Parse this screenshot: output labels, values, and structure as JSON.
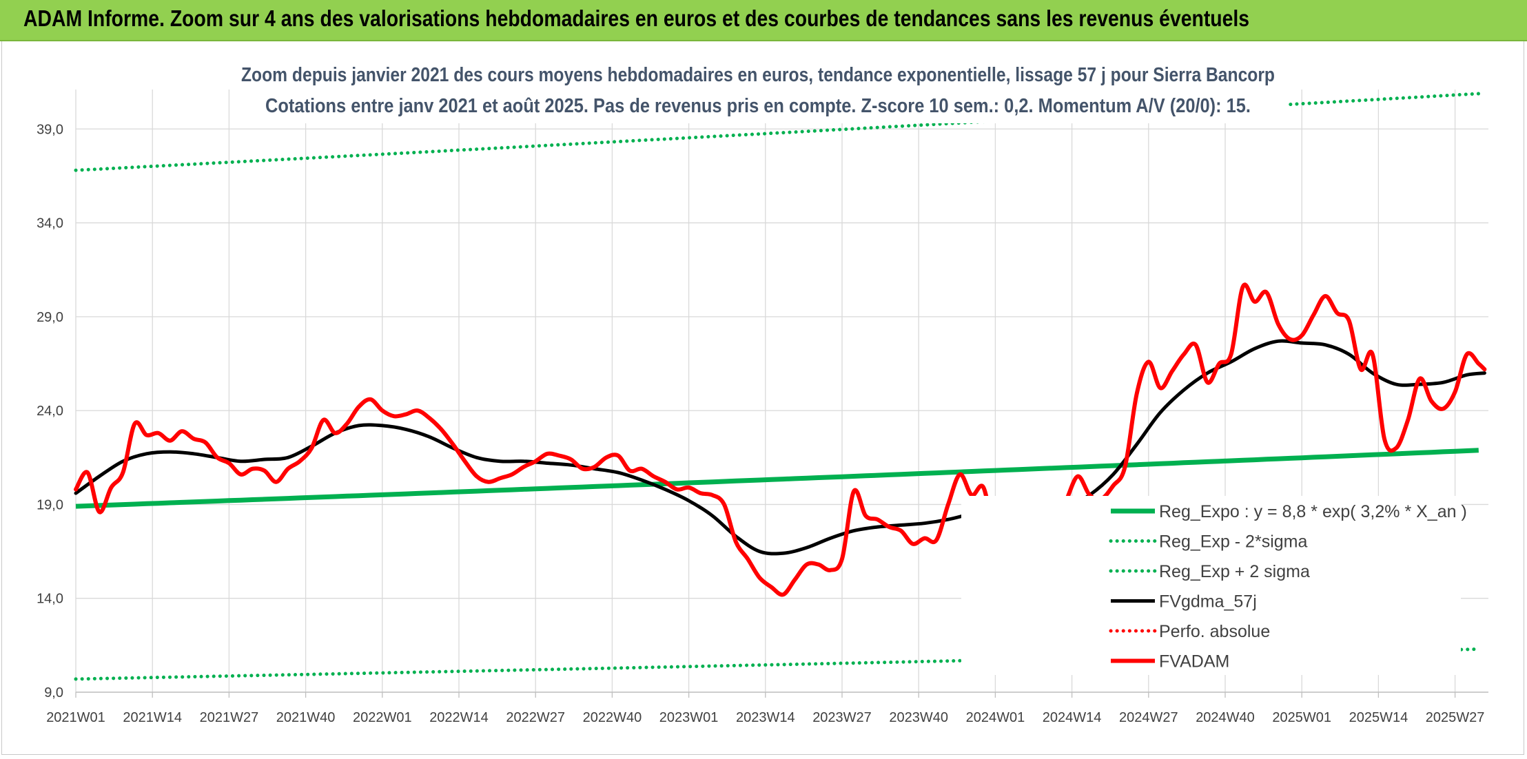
{
  "header": {
    "title": "ADAM Informe. Zoom sur 4 ans des valorisations hebdomadaires en euros et des courbes de tendances sans les revenus éventuels"
  },
  "colors": {
    "header_bg": "#92d050",
    "trend": "#00b050",
    "price": "#ff0000",
    "mavg": "#000000",
    "subtitle": "#44546a",
    "grid": "#d9d9d9"
  },
  "chart_data": {
    "type": "line",
    "title": "Zoom depuis janvier 2021 des cours moyens hebdomadaires en euros, tendance exponentielle, lissage 57 j pour Sierra Bancorp",
    "subtitle": "Cotations entre janv 2021 et août 2025. Pas de revenus pris en compte. Z-score 10 sem.: 0,2. Momentum A/V (20/0): 15.",
    "xlabel": "",
    "ylabel": "",
    "ylim": [
      9.0,
      40.0
    ],
    "yticks": [
      "9,0",
      "14,0",
      "19,0",
      "24,0",
      "29,0",
      "34,0",
      "39,0"
    ],
    "xticks": [
      "2021W01",
      "2021W14",
      "2021W27",
      "2021W40",
      "2022W01",
      "2022W14",
      "2022W27",
      "2022W40",
      "2023W01",
      "2023W14",
      "2023W27",
      "2023W40",
      "2024W01",
      "2024W14",
      "2024W27",
      "2024W40",
      "2025W01",
      "2025W14",
      "2025W27"
    ],
    "grid": true,
    "legend_position": "right",
    "series": [
      {
        "name": "Reg_Expo : y = 8,8 * exp( 3,2% *  X_an )",
        "style": "solid",
        "color": "#00b050",
        "x": [
          "2021W01",
          "2025W32"
        ],
        "y": [
          18.9,
          21.9
        ]
      },
      {
        "name": "Reg_Exp - 2*sigma",
        "style": "dotted",
        "color": "#00b050",
        "x": [
          "2021W01",
          "2025W32"
        ],
        "y": [
          9.7,
          11.3
        ]
      },
      {
        "name": "Reg_Exp + 2 sigma",
        "style": "dotted",
        "color": "#00b050",
        "x": [
          "2021W01",
          "2025W32"
        ],
        "y": [
          36.8,
          40.9
        ]
      },
      {
        "name": "FVgdma_57j",
        "style": "solid",
        "color": "#000000",
        "x": [
          "2021W01",
          "2021W05",
          "2021W09",
          "2021W13",
          "2021W17",
          "2021W21",
          "2021W25",
          "2021W29",
          "2021W33",
          "2021W37",
          "2021W41",
          "2021W45",
          "2021W49",
          "2022W01",
          "2022W05",
          "2022W09",
          "2022W13",
          "2022W17",
          "2022W21",
          "2022W25",
          "2022W29",
          "2022W33",
          "2022W37",
          "2022W41",
          "2022W45",
          "2022W49",
          "2023W01",
          "2023W05",
          "2023W09",
          "2023W13",
          "2023W17",
          "2023W21",
          "2023W25",
          "2023W29",
          "2023W33",
          "2023W37",
          "2023W41",
          "2023W45",
          "2023W49",
          "2024W01",
          "2024W05",
          "2024W09",
          "2024W13",
          "2024W17",
          "2024W21",
          "2024W25",
          "2024W29",
          "2024W33",
          "2024W37",
          "2024W41",
          "2024W45",
          "2024W49",
          "2025W01",
          "2025W05",
          "2025W09",
          "2025W13",
          "2025W17",
          "2025W21",
          "2025W25",
          "2025W29",
          "2025W32"
        ],
        "y": [
          19.6,
          20.5,
          21.3,
          21.7,
          21.8,
          21.7,
          21.5,
          21.3,
          21.4,
          21.5,
          22.1,
          22.8,
          23.2,
          23.2,
          23.0,
          22.6,
          22.0,
          21.5,
          21.3,
          21.3,
          21.2,
          21.1,
          20.9,
          20.7,
          20.3,
          19.8,
          19.2,
          18.4,
          17.3,
          16.5,
          16.4,
          16.7,
          17.2,
          17.6,
          17.8,
          17.9,
          18.0,
          18.2,
          18.5,
          18.7,
          18.6,
          18.5,
          18.8,
          19.5,
          20.6,
          22.2,
          23.9,
          25.1,
          26.0,
          26.6,
          27.3,
          27.7,
          27.6,
          27.5,
          27.0,
          26.0,
          25.4,
          25.4,
          25.5,
          25.9,
          26.0
        ]
      },
      {
        "name": "Perfo. absolue",
        "style": "dotted",
        "color": "#ff0000",
        "x": [],
        "y": []
      },
      {
        "name": "FVADAM",
        "style": "solid",
        "color": "#ff0000",
        "x": [
          "2021W01",
          "2021W03",
          "2021W05",
          "2021W07",
          "2021W09",
          "2021W11",
          "2021W13",
          "2021W15",
          "2021W17",
          "2021W19",
          "2021W21",
          "2021W23",
          "2021W25",
          "2021W27",
          "2021W29",
          "2021W31",
          "2021W33",
          "2021W35",
          "2021W37",
          "2021W39",
          "2021W41",
          "2021W43",
          "2021W45",
          "2021W47",
          "2021W49",
          "2021W51",
          "2022W01",
          "2022W03",
          "2022W05",
          "2022W07",
          "2022W09",
          "2022W11",
          "2022W13",
          "2022W15",
          "2022W17",
          "2022W19",
          "2022W21",
          "2022W23",
          "2022W25",
          "2022W27",
          "2022W29",
          "2022W31",
          "2022W33",
          "2022W35",
          "2022W37",
          "2022W39",
          "2022W41",
          "2022W43",
          "2022W45",
          "2022W47",
          "2022W49",
          "2022W51",
          "2023W01",
          "2023W03",
          "2023W05",
          "2023W07",
          "2023W09",
          "2023W11",
          "2023W13",
          "2023W15",
          "2023W17",
          "2023W19",
          "2023W21",
          "2023W23",
          "2023W25",
          "2023W27",
          "2023W29",
          "2023W31",
          "2023W33",
          "2023W35",
          "2023W37",
          "2023W39",
          "2023W41",
          "2023W43",
          "2023W45",
          "2023W47",
          "2023W49",
          "2023W51",
          "2024W01",
          "2024W03",
          "2024W05",
          "2024W07",
          "2024W09",
          "2024W11",
          "2024W13",
          "2024W15",
          "2024W17",
          "2024W19",
          "2024W21",
          "2024W23",
          "2024W25",
          "2024W27",
          "2024W29",
          "2024W31",
          "2024W33",
          "2024W35",
          "2024W37",
          "2024W39",
          "2024W41",
          "2024W43",
          "2024W45",
          "2024W47",
          "2024W49",
          "2024W51",
          "2025W01",
          "2025W03",
          "2025W05",
          "2025W07",
          "2025W09",
          "2025W11",
          "2025W13",
          "2025W15",
          "2025W17",
          "2025W19",
          "2025W21",
          "2025W23",
          "2025W25",
          "2025W27",
          "2025W29",
          "2025W31",
          "2025W32"
        ],
        "y": [
          19.8,
          20.7,
          18.6,
          19.9,
          20.7,
          23.3,
          22.7,
          22.8,
          22.4,
          22.9,
          22.5,
          22.3,
          21.5,
          21.2,
          20.6,
          20.9,
          20.8,
          20.2,
          20.9,
          21.3,
          22.0,
          23.5,
          22.8,
          23.3,
          24.2,
          24.6,
          24.0,
          23.7,
          23.8,
          24.0,
          23.6,
          23.0,
          22.2,
          21.3,
          20.5,
          20.2,
          20.4,
          20.6,
          21.0,
          21.3,
          21.7,
          21.6,
          21.4,
          20.9,
          21.0,
          21.5,
          21.6,
          20.8,
          20.9,
          20.5,
          20.2,
          19.8,
          19.9,
          19.6,
          19.5,
          19.0,
          17.0,
          16.1,
          15.1,
          14.6,
          14.2,
          15.0,
          15.8,
          15.8,
          15.5,
          16.1,
          19.7,
          18.4,
          18.2,
          17.8,
          17.6,
          16.9,
          17.2,
          17.1,
          19.0,
          20.6,
          19.5,
          19.9,
          17.2,
          17.2,
          16.9,
          17.1,
          17.6,
          18.0,
          19.2,
          20.5,
          19.5,
          19.3,
          20.0,
          21.0,
          24.9,
          26.6,
          25.2,
          26.1,
          27.0,
          27.5,
          25.5,
          26.5,
          27.0,
          30.6,
          29.8,
          30.3,
          28.6,
          27.8,
          28.0,
          29.1,
          30.1,
          29.2,
          28.8,
          26.2,
          27.0,
          22.5,
          22.0,
          23.5,
          25.7,
          24.5,
          24.1,
          25.0,
          27.0,
          26.5,
          26.2
        ]
      }
    ]
  }
}
